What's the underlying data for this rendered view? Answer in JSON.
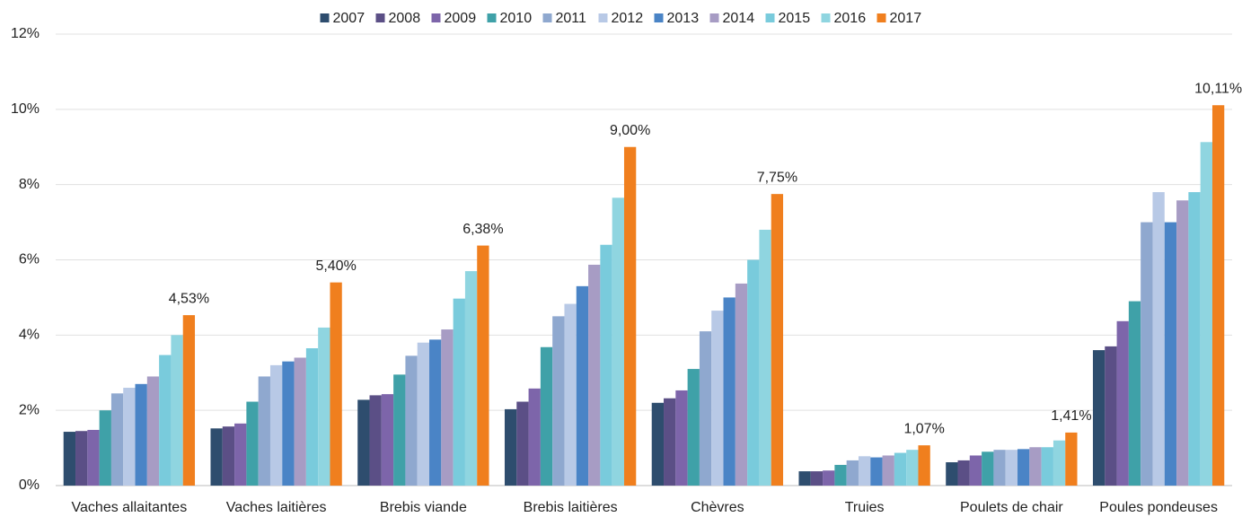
{
  "chart_data": {
    "type": "bar",
    "categories": [
      "Vaches allaitantes",
      "Vaches laitières",
      "Brebis viande",
      "Brebis laitières",
      "Chèvres",
      "Truies",
      "Poulets de chair",
      "Poules pondeuses"
    ],
    "series": [
      {
        "name": "2007",
        "color": "#2e4d6e",
        "values": [
          1.43,
          1.52,
          2.28,
          2.03,
          2.2,
          0.38,
          0.62,
          3.6
        ]
      },
      {
        "name": "2008",
        "color": "#5b4f86",
        "values": [
          1.45,
          1.57,
          2.4,
          2.23,
          2.32,
          0.38,
          0.67,
          3.7
        ]
      },
      {
        "name": "2009",
        "color": "#7d65aa",
        "values": [
          1.48,
          1.65,
          2.43,
          2.58,
          2.53,
          0.4,
          0.8,
          4.37
        ]
      },
      {
        "name": "2010",
        "color": "#3fa1a8",
        "values": [
          2.0,
          2.23,
          2.95,
          3.68,
          3.1,
          0.55,
          0.9,
          4.9
        ]
      },
      {
        "name": "2011",
        "color": "#8fa8cf",
        "values": [
          2.45,
          2.9,
          3.45,
          4.5,
          4.1,
          0.67,
          0.95,
          7.0
        ]
      },
      {
        "name": "2012",
        "color": "#b8c9e6",
        "values": [
          2.6,
          3.2,
          3.8,
          4.83,
          4.65,
          0.78,
          0.95,
          7.8
        ]
      },
      {
        "name": "2013",
        "color": "#4a84c6",
        "values": [
          2.7,
          3.3,
          3.88,
          5.3,
          5.0,
          0.75,
          0.97,
          7.0
        ]
      },
      {
        "name": "2014",
        "color": "#a79cc4",
        "values": [
          2.9,
          3.4,
          4.15,
          5.87,
          5.37,
          0.8,
          1.02,
          7.58
        ]
      },
      {
        "name": "2015",
        "color": "#79cbdc",
        "values": [
          3.47,
          3.65,
          4.97,
          6.4,
          6.0,
          0.87,
          1.02,
          7.8
        ]
      },
      {
        "name": "2016",
        "color": "#8fd5e0",
        "values": [
          4.0,
          4.2,
          5.7,
          7.65,
          6.8,
          0.95,
          1.2,
          9.13
        ]
      },
      {
        "name": "2017",
        "color": "#f07f1e",
        "values": [
          4.53,
          5.4,
          6.38,
          9.0,
          7.75,
          1.07,
          1.41,
          10.11
        ],
        "value_labels": [
          "4,53%",
          "5,40%",
          "6,38%",
          "9,00%",
          "7,75%",
          "1,07%",
          "1,41%",
          "10,11%"
        ]
      }
    ],
    "ylim": [
      0,
      12
    ],
    "yticks": [
      {
        "value": 0,
        "label": "0%"
      },
      {
        "value": 2,
        "label": "2%"
      },
      {
        "value": 4,
        "label": "4%"
      },
      {
        "value": 6,
        "label": "6%"
      },
      {
        "value": 8,
        "label": "8%"
      },
      {
        "value": 10,
        "label": "10%"
      },
      {
        "value": 12,
        "label": "12%"
      }
    ],
    "grid": true,
    "legend": "top"
  }
}
